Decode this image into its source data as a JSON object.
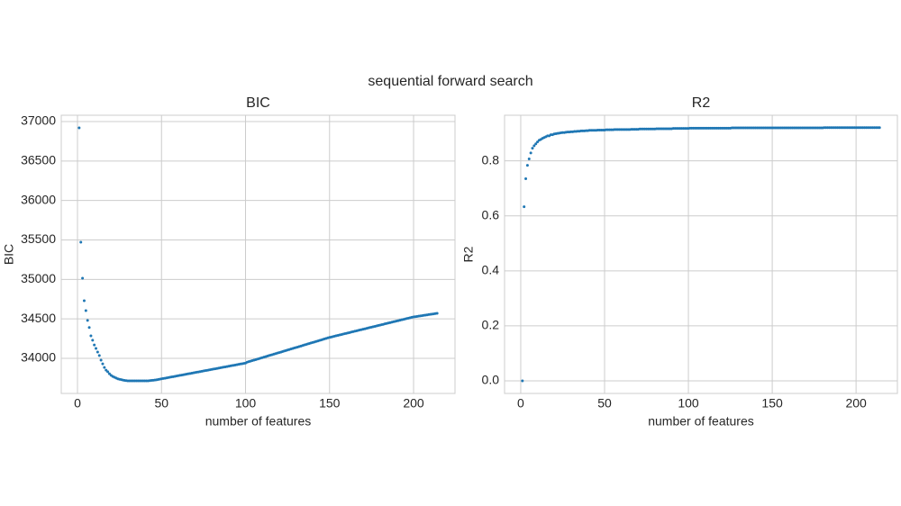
{
  "title": "sequential forward search",
  "chart_data": [
    {
      "type": "scatter",
      "title": "BIC",
      "x_label": "number of features",
      "y_label": "BIC",
      "color": "#1f77b4",
      "grid": true,
      "xlim": [
        -9.65,
        224.65
      ],
      "ylim": [
        33555,
        37080
      ],
      "xticks": [
        0,
        50,
        100,
        150,
        200
      ],
      "yticks": [
        34000,
        34500,
        35000,
        35500,
        36000,
        36500,
        37000
      ],
      "x": [
        1,
        2,
        3,
        4,
        5,
        6,
        7,
        8,
        9,
        10,
        11,
        12,
        13,
        14,
        15,
        16,
        17,
        18,
        19,
        20,
        21,
        22,
        23,
        24,
        25,
        26,
        27,
        28,
        29,
        30,
        31,
        32,
        33,
        34,
        35,
        36,
        37,
        38,
        39,
        40,
        41,
        42,
        43,
        44,
        45,
        46,
        47,
        48,
        49,
        50,
        51,
        52,
        53,
        54,
        55,
        56,
        57,
        58,
        59,
        60,
        61,
        62,
        63,
        64,
        65,
        66,
        67,
        68,
        69,
        70,
        71,
        72,
        73,
        74,
        75,
        76,
        77,
        78,
        79,
        80,
        81,
        82,
        83,
        84,
        85,
        86,
        87,
        88,
        89,
        90,
        91,
        92,
        93,
        94,
        95,
        96,
        97,
        98,
        99,
        100,
        101,
        102,
        103,
        104,
        105,
        106,
        107,
        108,
        109,
        110,
        111,
        112,
        113,
        114,
        115,
        116,
        117,
        118,
        119,
        120,
        121,
        122,
        123,
        124,
        125,
        126,
        127,
        128,
        129,
        130,
        131,
        132,
        133,
        134,
        135,
        136,
        137,
        138,
        139,
        140,
        141,
        142,
        143,
        144,
        145,
        146,
        147,
        148,
        149,
        150,
        151,
        152,
        153,
        154,
        155,
        156,
        157,
        158,
        159,
        160,
        161,
        162,
        163,
        164,
        165,
        166,
        167,
        168,
        169,
        170,
        171,
        172,
        173,
        174,
        175,
        176,
        177,
        178,
        179,
        180,
        181,
        182,
        183,
        184,
        185,
        186,
        187,
        188,
        189,
        190,
        191,
        192,
        193,
        194,
        195,
        196,
        197,
        198,
        199,
        200,
        201,
        202,
        203,
        204,
        205,
        206,
        207,
        208,
        209,
        210,
        211,
        212,
        213,
        214
      ],
      "values": [
        36920,
        35472,
        35015,
        34730,
        34605,
        34480,
        34390,
        34285,
        34230,
        34170,
        34125,
        34080,
        34035,
        33977,
        33930,
        33885,
        33850,
        33830,
        33805,
        33785,
        33770,
        33760,
        33750,
        33740,
        33735,
        33730,
        33725,
        33720,
        33718,
        33715,
        33715,
        33715,
        33715,
        33715,
        33715,
        33715,
        33715,
        33715,
        33715,
        33715,
        33715,
        33715,
        33718,
        33720,
        33722,
        33725,
        33728,
        33732,
        33736,
        33740,
        33744,
        33748,
        33752,
        33756,
        33760,
        33764,
        33768,
        33772,
        33776,
        33780,
        33784,
        33788,
        33792,
        33796,
        33800,
        33804,
        33808,
        33812,
        33816,
        33820,
        33824,
        33828,
        33832,
        33836,
        33840,
        33844,
        33848,
        33852,
        33856,
        33860,
        33864,
        33868,
        33872,
        33876,
        33880,
        33884,
        33888,
        33892,
        33896,
        33900,
        33904,
        33908,
        33912,
        33916,
        33920,
        33924,
        33928,
        33932,
        33936,
        33940,
        33951,
        33958,
        33964,
        33971,
        33977,
        33983,
        33990,
        33996,
        34003,
        34009,
        34015,
        34022,
        34028,
        34035,
        34041,
        34047,
        34054,
        34060,
        34067,
        34073,
        34079,
        34086,
        34092,
        34099,
        34105,
        34111,
        34118,
        34124,
        34131,
        34137,
        34143,
        34150,
        34156,
        34163,
        34169,
        34175,
        34182,
        34188,
        34195,
        34201,
        34207,
        34214,
        34220,
        34227,
        34233,
        34239,
        34246,
        34252,
        34259,
        34265,
        34270,
        34275,
        34281,
        34286,
        34291,
        34296,
        34301,
        34307,
        34312,
        34317,
        34322,
        34327,
        34333,
        34338,
        34343,
        34348,
        34353,
        34359,
        34364,
        34369,
        34374,
        34379,
        34385,
        34390,
        34395,
        34400,
        34405,
        34411,
        34416,
        34421,
        34426,
        34431,
        34437,
        34442,
        34447,
        34452,
        34457,
        34463,
        34468,
        34473,
        34478,
        34483,
        34489,
        34494,
        34499,
        34504,
        34509,
        34515,
        34520,
        34525,
        34528,
        34531,
        34535,
        34538,
        34541,
        34544,
        34547,
        34551,
        34554,
        34557,
        34560,
        34563,
        34567,
        34570
      ]
    },
    {
      "type": "scatter",
      "title": "R2",
      "x_label": "number of features",
      "y_label": "R2",
      "color": "#1f77b4",
      "grid": true,
      "xlim": [
        -9.65,
        224.65
      ],
      "ylim": [
        -0.046,
        0.966
      ],
      "xticks": [
        0,
        50,
        100,
        150,
        200
      ],
      "yticks": [
        {
          "value": 0,
          "label": "0.0"
        },
        {
          "value": 0.2,
          "label": "0.2"
        },
        {
          "value": 0.4,
          "label": "0.4"
        },
        {
          "value": 0.6,
          "label": "0.6"
        },
        {
          "value": 0.8,
          "label": "0.8"
        }
      ],
      "x": [
        1,
        2,
        3,
        4,
        5,
        6,
        7,
        8,
        9,
        10,
        11,
        12,
        13,
        14,
        15,
        16,
        17,
        18,
        19,
        20,
        21,
        22,
        23,
        24,
        25,
        26,
        27,
        28,
        29,
        30,
        31,
        32,
        33,
        34,
        35,
        36,
        37,
        38,
        39,
        40,
        41,
        42,
        43,
        44,
        45,
        46,
        47,
        48,
        49,
        50,
        51,
        52,
        53,
        54,
        55,
        56,
        57,
        58,
        59,
        60,
        61,
        62,
        63,
        64,
        65,
        66,
        67,
        68,
        69,
        70,
        71,
        72,
        73,
        74,
        75,
        76,
        77,
        78,
        79,
        80,
        81,
        82,
        83,
        84,
        85,
        86,
        87,
        88,
        89,
        90,
        91,
        92,
        93,
        94,
        95,
        96,
        97,
        98,
        99,
        100,
        101,
        102,
        103,
        104,
        105,
        106,
        107,
        108,
        109,
        110,
        111,
        112,
        113,
        114,
        115,
        116,
        117,
        118,
        119,
        120,
        121,
        122,
        123,
        124,
        125,
        126,
        127,
        128,
        129,
        130,
        131,
        132,
        133,
        134,
        135,
        136,
        137,
        138,
        139,
        140,
        141,
        142,
        143,
        144,
        145,
        146,
        147,
        148,
        149,
        150,
        151,
        152,
        153,
        154,
        155,
        156,
        157,
        158,
        159,
        160,
        161,
        162,
        163,
        164,
        165,
        166,
        167,
        168,
        169,
        170,
        171,
        172,
        173,
        174,
        175,
        176,
        177,
        178,
        179,
        180,
        181,
        182,
        183,
        184,
        185,
        186,
        187,
        188,
        189,
        190,
        191,
        192,
        193,
        194,
        195,
        196,
        197,
        198,
        199,
        200,
        201,
        202,
        203,
        204,
        205,
        206,
        207,
        208,
        209,
        210,
        211,
        212,
        213,
        214
      ],
      "values": [
        0,
        0.633,
        0.735,
        0.784,
        0.807,
        0.829,
        0.846,
        0.855,
        0.862,
        0.869,
        0.875,
        0.878,
        0.882,
        0.885,
        0.888,
        0.891,
        0.891,
        0.895,
        0.895,
        0.898,
        0.899,
        0.9,
        0.901,
        0.902,
        0.903,
        0.903,
        0.904,
        0.905,
        0.905,
        0.906,
        0.906,
        0.907,
        0.907,
        0.908,
        0.908,
        0.909,
        0.909,
        0.909,
        0.91,
        0.91,
        0.911,
        0.911,
        0.911,
        0.911,
        0.911,
        0.912,
        0.912,
        0.912,
        0.912,
        0.912,
        0.913,
        0.913,
        0.913,
        0.913,
        0.913,
        0.914,
        0.914,
        0.914,
        0.914,
        0.914,
        0.914,
        0.914,
        0.914,
        0.914,
        0.914,
        0.915,
        0.915,
        0.915,
        0.915,
        0.915,
        0.916,
        0.916,
        0.916,
        0.916,
        0.916,
        0.916,
        0.916,
        0.916,
        0.916,
        0.916,
        0.917,
        0.917,
        0.917,
        0.917,
        0.917,
        0.917,
        0.917,
        0.917,
        0.917,
        0.917,
        0.918,
        0.918,
        0.918,
        0.918,
        0.918,
        0.918,
        0.918,
        0.918,
        0.918,
        0.918,
        0.919,
        0.919,
        0.919,
        0.919,
        0.919,
        0.919,
        0.919,
        0.919,
        0.919,
        0.919,
        0.919,
        0.919,
        0.919,
        0.919,
        0.919,
        0.919,
        0.919,
        0.919,
        0.919,
        0.919,
        0.919,
        0.919,
        0.919,
        0.919,
        0.919,
        0.92,
        0.92,
        0.92,
        0.92,
        0.92,
        0.92,
        0.92,
        0.92,
        0.92,
        0.92,
        0.92,
        0.92,
        0.92,
        0.92,
        0.92,
        0.92,
        0.92,
        0.92,
        0.92,
        0.92,
        0.92,
        0.92,
        0.92,
        0.92,
        0.92,
        0.92,
        0.92,
        0.92,
        0.92,
        0.92,
        0.92,
        0.92,
        0.92,
        0.92,
        0.92,
        0.92,
        0.92,
        0.92,
        0.92,
        0.92,
        0.92,
        0.92,
        0.92,
        0.92,
        0.92,
        0.92,
        0.92,
        0.92,
        0.92,
        0.92,
        0.92,
        0.92,
        0.92,
        0.92,
        0.92,
        0.921,
        0.921,
        0.921,
        0.921,
        0.921,
        0.921,
        0.921,
        0.921,
        0.921,
        0.921,
        0.921,
        0.921,
        0.921,
        0.921,
        0.921,
        0.921,
        0.921,
        0.921,
        0.921,
        0.921,
        0.921,
        0.921,
        0.921,
        0.921,
        0.921,
        0.921,
        0.921,
        0.921,
        0.921,
        0.921,
        0.921,
        0.921,
        0.921,
        0.921
      ]
    }
  ]
}
